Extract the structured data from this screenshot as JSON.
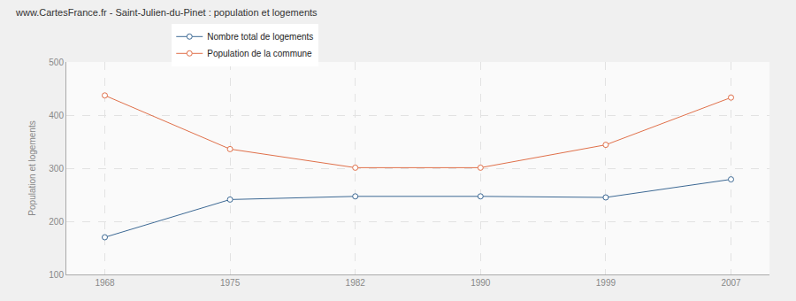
{
  "chart_data": {
    "type": "line",
    "title": "www.CartesFrance.fr - Saint-Julien-du-Pinet : population et logements",
    "y_label": "Population et logements",
    "categories": [
      "1968",
      "1975",
      "1982",
      "1990",
      "1999",
      "2007"
    ],
    "series": [
      {
        "name": "Nombre total de logements",
        "color": "#3d6994",
        "marker": "circle",
        "values": [
          170,
          241,
          247,
          247,
          245,
          279
        ]
      },
      {
        "name": "Population de la commune",
        "color": "#e0704a",
        "marker": "circle",
        "values": [
          437,
          336,
          301,
          301,
          344,
          433
        ]
      }
    ],
    "ylim": [
      100,
      500
    ],
    "yticks": [
      100,
      200,
      300,
      400,
      500
    ],
    "grid": true,
    "legend": "top"
  }
}
